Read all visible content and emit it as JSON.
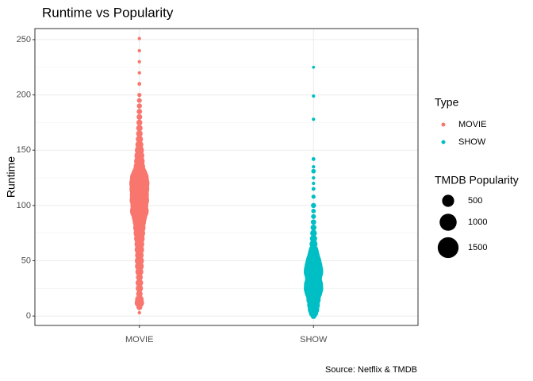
{
  "chart_data": {
    "type": "scatter",
    "title": "Runtime vs Popularity",
    "y_label": "Runtime",
    "caption": "Source: Netflix & TMDB",
    "categories": [
      "MOVIE",
      "SHOW"
    ],
    "ylim": [
      -8.5,
      260
    ],
    "yticks": [
      0,
      50,
      100,
      150,
      200,
      250
    ],
    "yminor": [
      25,
      75,
      125,
      175,
      225
    ],
    "grid": true,
    "legend_title": "Type",
    "series": [
      {
        "name": "MOVIE",
        "color": "#F8766D",
        "values": [
          3,
          8,
          12,
          15,
          20,
          25,
          30,
          35,
          40,
          45,
          50,
          55,
          60,
          65,
          70,
          75,
          80,
          85,
          88,
          90,
          92,
          95,
          98,
          100,
          103,
          105,
          108,
          110,
          112,
          115,
          118,
          120,
          122,
          125,
          128,
          130,
          135,
          140,
          145,
          150,
          155,
          160,
          165,
          170,
          175,
          180,
          185,
          190,
          195,
          200,
          210,
          220,
          230,
          240,
          251
        ],
        "sizes": [
          40,
          120,
          300,
          250,
          150,
          180,
          200,
          160,
          220,
          260,
          280,
          250,
          300,
          320,
          380,
          450,
          520,
          600,
          700,
          800,
          900,
          1200,
          950,
          1100,
          1000,
          1300,
          1150,
          1250,
          1100,
          1350,
          1200,
          1400,
          1250,
          1200,
          900,
          700,
          450,
          380,
          330,
          280,
          220,
          180,
          150,
          140,
          120,
          110,
          100,
          90,
          80,
          60,
          50,
          40,
          40,
          40,
          40
        ]
      },
      {
        "name": "SHOW",
        "color": "#00BFC4",
        "values": [
          0,
          3,
          6,
          10,
          15,
          20,
          22,
          25,
          28,
          30,
          33,
          35,
          38,
          40,
          42,
          45,
          48,
          50,
          52,
          55,
          58,
          60,
          65,
          70,
          75,
          80,
          85,
          90,
          95,
          100,
          108,
          115,
          120,
          125,
          131,
          135,
          142,
          178,
          199,
          225
        ],
        "sizes": [
          120,
          300,
          450,
          550,
          700,
          900,
          1100,
          1300,
          1250,
          1100,
          950,
          1000,
          1150,
          1300,
          1250,
          1100,
          900,
          800,
          650,
          500,
          380,
          300,
          220,
          180,
          150,
          120,
          100,
          80,
          70,
          90,
          60,
          50,
          40,
          40,
          70,
          40,
          50,
          40,
          40,
          30
        ]
      }
    ],
    "size_legend": {
      "title": "TMDB Popularity",
      "breaks": [
        500,
        1000,
        1500
      ]
    }
  }
}
